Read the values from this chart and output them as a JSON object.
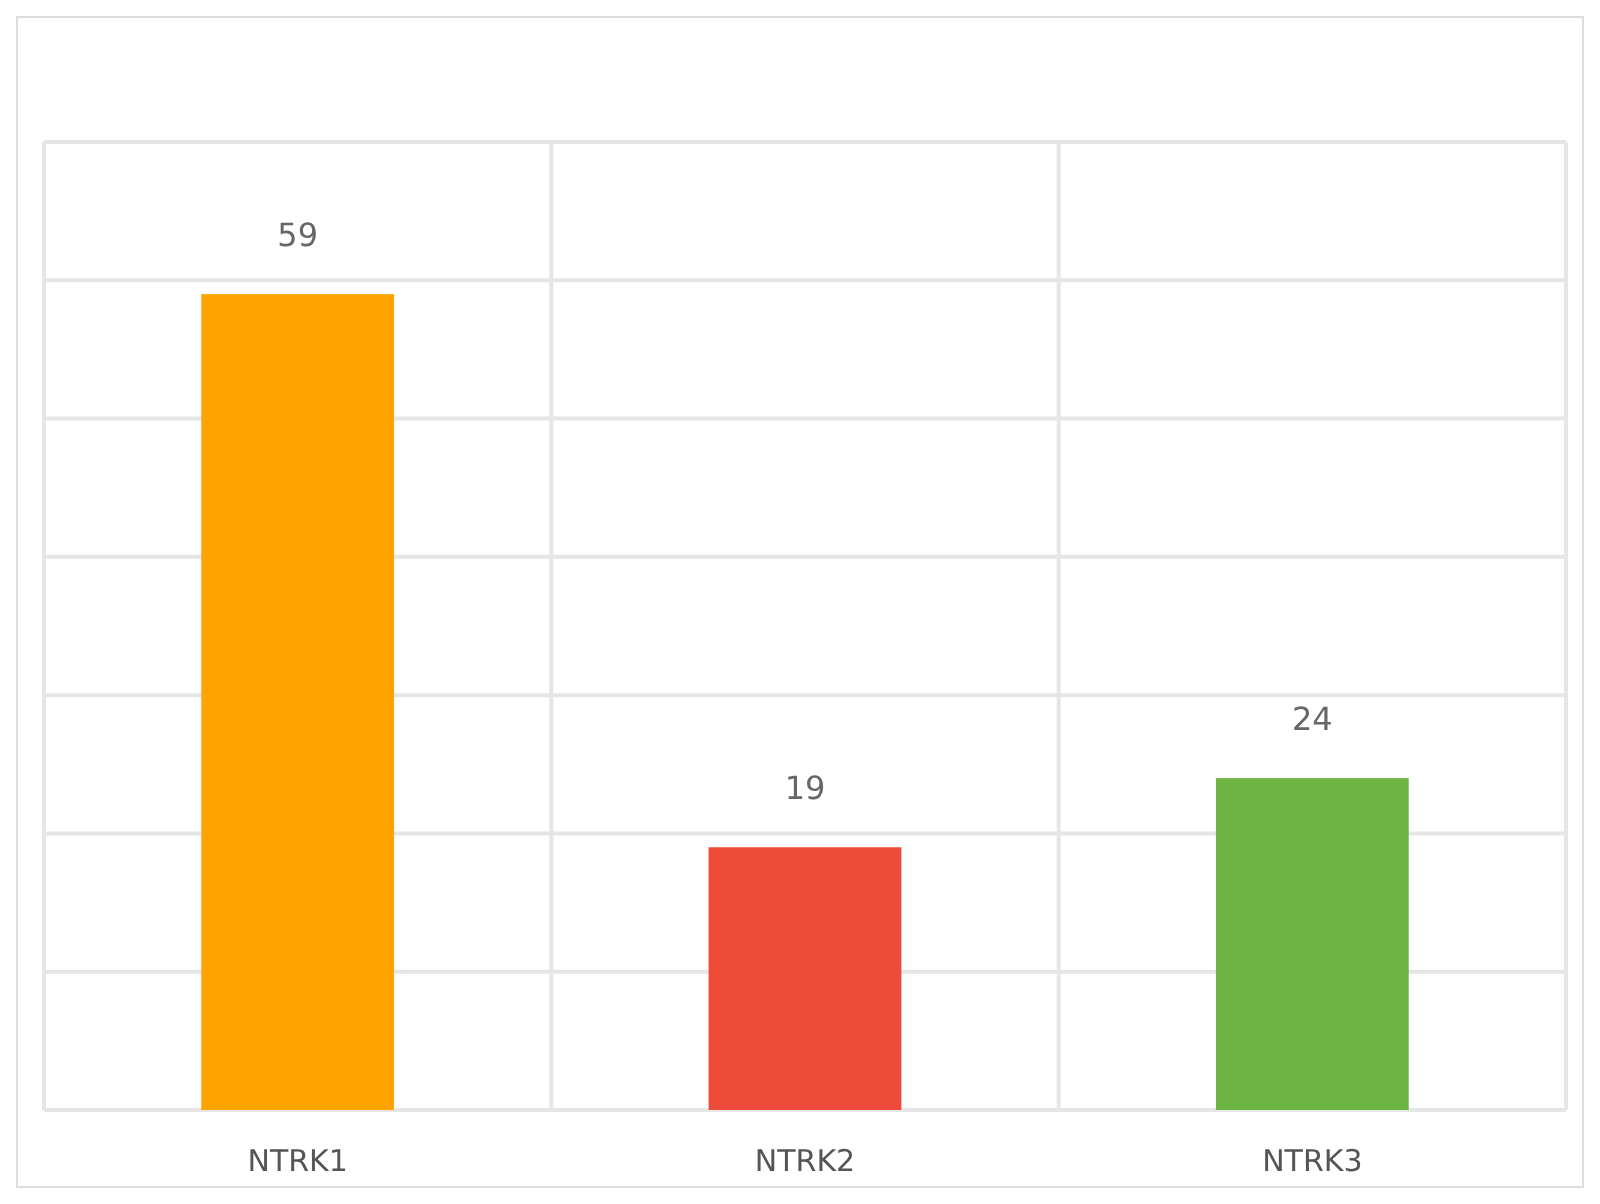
{
  "chart_data": {
    "type": "bar",
    "categories": [
      "NTRK1",
      "NTRK2",
      "NTRK3"
    ],
    "values": [
      59,
      19,
      24
    ],
    "colors": [
      "#ffa300",
      "#ef4b3a",
      "#6cb444"
    ],
    "data_labels": true,
    "ylim": [
      0,
      70
    ],
    "yticks": [
      {
        "value": 0,
        "label": null
      },
      {
        "value": 10,
        "label": null
      },
      {
        "value": 20,
        "label": null
      },
      {
        "value": 30,
        "label": null
      },
      {
        "value": 40,
        "label": null
      },
      {
        "value": 50,
        "label": null
      },
      {
        "value": 60,
        "label": null
      },
      {
        "value": 70,
        "label": null
      }
    ],
    "tick_labels": "x",
    "grid": true
  }
}
